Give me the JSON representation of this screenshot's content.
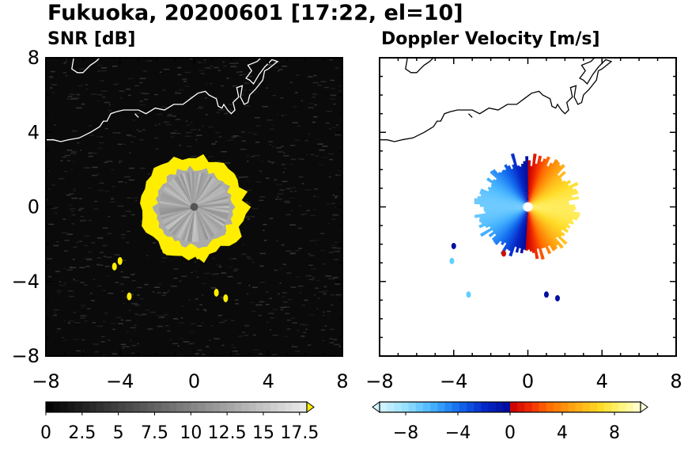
{
  "figure": {
    "title": "Fukuoka, 20200601 [17:22, el=10]"
  },
  "chart_data": [
    {
      "type": "heatmap",
      "title": "SNR [dB]",
      "xlim": [
        -8,
        8
      ],
      "ylim": [
        -8,
        8
      ],
      "xticks": [
        "−8",
        "−4",
        "0",
        "4",
        "8"
      ],
      "yticks": [
        "8",
        "4",
        "0",
        "−4",
        "−8"
      ],
      "grid": false,
      "colorbar": {
        "range": [
          0,
          18
        ],
        "extend": "max",
        "ticks": [
          "0",
          "2.5",
          "5",
          "7.5",
          "10",
          "12.5",
          "15",
          "17.5"
        ],
        "tick_values": [
          0,
          2.5,
          5,
          7.5,
          10,
          12.5,
          15,
          17.5
        ],
        "colors": [
          "#000000",
          "#ffffff",
          "#ffee00"
        ]
      },
      "echo": {
        "center": [
          0,
          0
        ],
        "core_radius": 2.1,
        "ring_radius": 2.8,
        "ring_color": "#ffee00",
        "core_snr_range": [
          10,
          16
        ],
        "ring_snr_range": [
          18,
          20
        ]
      },
      "coastline_color": "#ffffff"
    },
    {
      "type": "heatmap",
      "title": "Doppler Velocity [m/s]",
      "xlim": [
        -8,
        8
      ],
      "ylim": [
        -8,
        8
      ],
      "xticks": [
        "−8",
        "−4",
        "0",
        "4",
        "8"
      ],
      "yticks": [
        "8",
        "4",
        "0",
        "−4",
        "−8"
      ],
      "grid": false,
      "colorbar": {
        "range": [
          -10,
          10
        ],
        "extend": "both",
        "ticks": [
          "−8",
          "−4",
          "0",
          "4",
          "8"
        ],
        "tick_values": [
          -8,
          -4,
          0,
          4,
          8
        ],
        "colors": [
          "#c8f4ff",
          "#5fd0ff",
          "#1a6cff",
          "#0010a0",
          "#cc0000",
          "#ff6a00",
          "#ffd21a",
          "#fffcc8"
        ]
      },
      "echo": {
        "center": [
          0,
          0
        ],
        "radius": 2.6,
        "negative_side": "west",
        "positive_side": "east",
        "velocity_range": [
          -7,
          8
        ]
      },
      "coastline_color": "#000000"
    }
  ]
}
